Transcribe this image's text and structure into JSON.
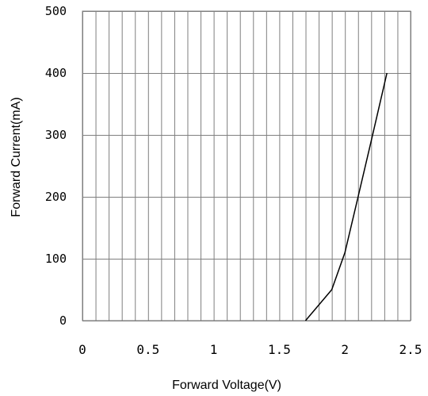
{
  "chart_data": {
    "type": "line",
    "xlabel": "Forward Voltage(V)",
    "ylabel": "Forward Current(mA)",
    "xlim": [
      0,
      2.5
    ],
    "ylim": [
      0,
      500
    ],
    "x_ticks": [
      0,
      0.5,
      1,
      1.5,
      2,
      2.5
    ],
    "x_tick_labels": [
      "0",
      "0.5",
      "1",
      "1.5",
      "2",
      "2.5"
    ],
    "y_ticks": [
      0,
      100,
      200,
      300,
      400,
      500
    ],
    "y_tick_labels": [
      "0",
      "100",
      "200",
      "300",
      "400",
      "500"
    ],
    "x_grid_step": 0.1,
    "y_grid_step": 100,
    "grid": true,
    "series": [
      {
        "x": [
          1.7,
          1.9,
          2.0,
          2.1,
          2.2,
          2.32
        ],
        "y": [
          0,
          50,
          110,
          200,
          290,
          400
        ]
      }
    ]
  }
}
